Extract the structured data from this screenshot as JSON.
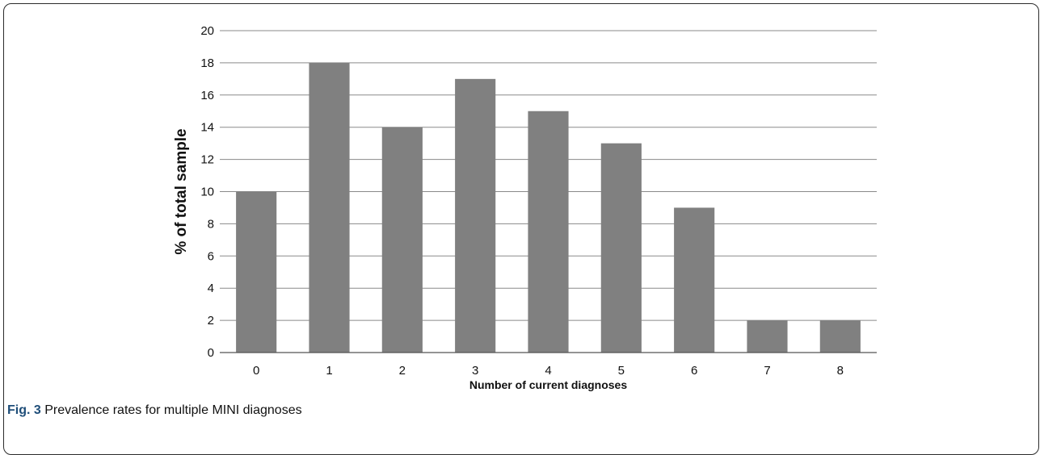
{
  "chart_data": {
    "type": "bar",
    "categories": [
      "0",
      "1",
      "2",
      "3",
      "4",
      "5",
      "6",
      "7",
      "8"
    ],
    "values": [
      10,
      18,
      14,
      17,
      15,
      13,
      9,
      2,
      2
    ],
    "xlabel": "Number of current diagnoses",
    "ylabel": "% of total sample",
    "ylim": [
      0,
      20
    ],
    "yticks": [
      "0",
      "2",
      "4",
      "6",
      "8",
      "10",
      "12",
      "14",
      "16",
      "18",
      "20"
    ],
    "grid": true,
    "bar_color": "#808080",
    "grid_color": "#8a8a8a"
  },
  "caption": {
    "label": "Fig. 3",
    "text": "Prevalence rates for multiple MINI diagnoses",
    "label_color": "#1f4e79"
  }
}
